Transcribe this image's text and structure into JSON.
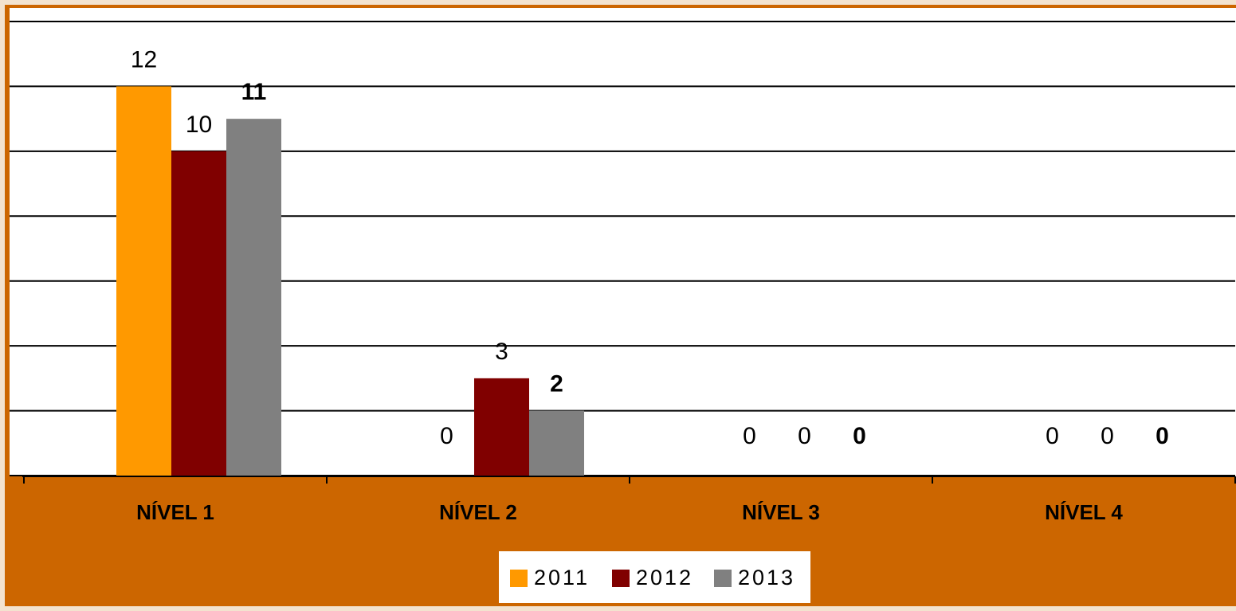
{
  "chart_data": {
    "type": "bar",
    "categories": [
      "NÍVEL 1",
      "NÍVEL 2",
      "NÍVEL 3",
      "NÍVEL 4"
    ],
    "series": [
      {
        "name": "2011",
        "color": "#ff9900",
        "values": [
          12,
          0,
          0,
          0
        ]
      },
      {
        "name": "2012",
        "color": "#800000",
        "values": [
          10,
          3,
          0,
          0
        ]
      },
      {
        "name": "2013",
        "color": "#808080",
        "values": [
          11,
          2,
          0,
          0
        ],
        "bold": true
      }
    ],
    "ylim": [
      0,
      14
    ],
    "yticks": [
      0,
      2,
      4,
      6,
      8,
      10,
      12,
      14
    ],
    "grid": true,
    "legend": "bottom"
  }
}
